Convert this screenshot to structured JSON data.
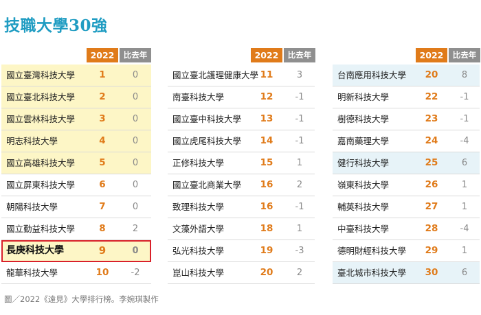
{
  "title": "技職大學30強",
  "headers": {
    "year": "2022",
    "prev": "比去年"
  },
  "columns": [
    [
      {
        "name": "國立臺灣科技大學",
        "rank": "1",
        "change": "0",
        "style": "yellow"
      },
      {
        "name": "國立臺北科技大學",
        "rank": "2",
        "change": "0",
        "style": "yellow"
      },
      {
        "name": "國立雲林科技大學",
        "rank": "3",
        "change": "0",
        "style": "yellow"
      },
      {
        "name": "明志科技大學",
        "rank": "4",
        "change": "0",
        "style": "yellow"
      },
      {
        "name": "國立高雄科技大學",
        "rank": "5",
        "change": "0",
        "style": "yellow"
      },
      {
        "name": "國立屏東科技大學",
        "rank": "6",
        "change": "0",
        "style": ""
      },
      {
        "name": "朝陽科技大學",
        "rank": "7",
        "change": "0",
        "style": ""
      },
      {
        "name": "國立勤益科技大學",
        "rank": "8",
        "change": "2",
        "style": ""
      },
      {
        "name": "長庚科技大學",
        "rank": "9",
        "change": "0",
        "style": "featured"
      },
      {
        "name": "龍華科技大學",
        "rank": "10",
        "change": "-2",
        "style": ""
      }
    ],
    [
      {
        "name": "國立臺北護理健康大學",
        "rank": "11",
        "change": "3",
        "style": ""
      },
      {
        "name": "南臺科技大學",
        "rank": "12",
        "change": "-1",
        "style": ""
      },
      {
        "name": "國立臺中科技大學",
        "rank": "13",
        "change": "-1",
        "style": ""
      },
      {
        "name": "國立虎尾科技大學",
        "rank": "14",
        "change": "-1",
        "style": ""
      },
      {
        "name": "正修科技大學",
        "rank": "15",
        "change": "1",
        "style": ""
      },
      {
        "name": "國立臺北商業大學",
        "rank": "16",
        "change": "2",
        "style": ""
      },
      {
        "name": "致理科技大學",
        "rank": "16",
        "change": "-1",
        "style": ""
      },
      {
        "name": "文藻外語大學",
        "rank": "18",
        "change": "1",
        "style": ""
      },
      {
        "name": "弘光科技大學",
        "rank": "19",
        "change": "-3",
        "style": ""
      },
      {
        "name": "崑山科技大學",
        "rank": "20",
        "change": "2",
        "style": ""
      }
    ],
    [
      {
        "name": "台南應用科技大學",
        "rank": "20",
        "change": "8",
        "style": "blue"
      },
      {
        "name": "明新科技大學",
        "rank": "22",
        "change": "-1",
        "style": ""
      },
      {
        "name": "樹德科技大學",
        "rank": "23",
        "change": "-1",
        "style": ""
      },
      {
        "name": "嘉南藥理大學",
        "rank": "24",
        "change": "-4",
        "style": ""
      },
      {
        "name": "健行科技大學",
        "rank": "25",
        "change": "6",
        "style": "blue"
      },
      {
        "name": "嶺東科技大學",
        "rank": "26",
        "change": "1",
        "style": ""
      },
      {
        "name": "輔英科技大學",
        "rank": "27",
        "change": "1",
        "style": ""
      },
      {
        "name": "中臺科技大學",
        "rank": "28",
        "change": "-4",
        "style": ""
      },
      {
        "name": "德明財經科技大學",
        "rank": "29",
        "change": "1",
        "style": ""
      },
      {
        "name": "臺北城市科技大學",
        "rank": "30",
        "change": "6",
        "style": "blue"
      }
    ]
  ],
  "credit": "圖／2022《遠見》大學排行榜。李婉琪製作",
  "colors": {
    "title": "#1f9cc2",
    "accent_orange": "#e07b1a",
    "header_gray": "#8f8f8f",
    "highlight_yellow": "#fdf6c6",
    "highlight_blue": "#e7f3f8",
    "featured_border": "#d9202a"
  }
}
